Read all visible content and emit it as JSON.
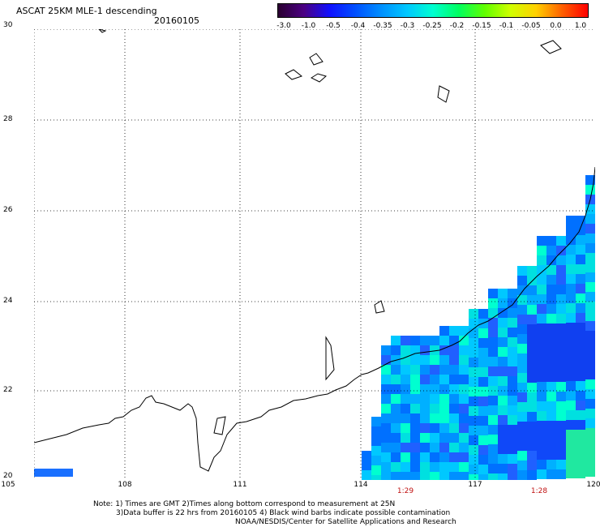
{
  "header": {
    "title": "ASCAT 25KM MLE-1 descending",
    "date": "20160105"
  },
  "colorbar": {
    "ticks": [
      "-3.0",
      "-1.0",
      "-0.5",
      "-0.4",
      "-0.35",
      "-0.3",
      "-0.25",
      "-0.2",
      "-0.15",
      "-0.1",
      "-0.05",
      "0.0",
      "1.0"
    ],
    "colors": [
      "#2a0030",
      "#4b0082",
      "#1010ff",
      "#0050ff",
      "#0090ff",
      "#00c8ff",
      "#00ffd0",
      "#00ff60",
      "#60ff00",
      "#d0ff00",
      "#ffd000",
      "#ff6000",
      "#ff0000"
    ]
  },
  "axes": {
    "lat_labels": [
      "30",
      "28",
      "26",
      "24",
      "22",
      "20"
    ],
    "lon_labels": [
      "105",
      "108",
      "111",
      "114",
      "117",
      "120"
    ]
  },
  "times": [
    "1:29",
    "1:28"
  ],
  "notes": {
    "line1": "Note: 1) Times are GMT 2)Times along bottom correspond to measurement at 25N",
    "line2": "3)Data buffer is 22 hrs from 20160105 4) Black wind barbs indicate possible contamination",
    "line3": "NOAA/NESDIS/Center for Satellite Applications and Research"
  }
}
